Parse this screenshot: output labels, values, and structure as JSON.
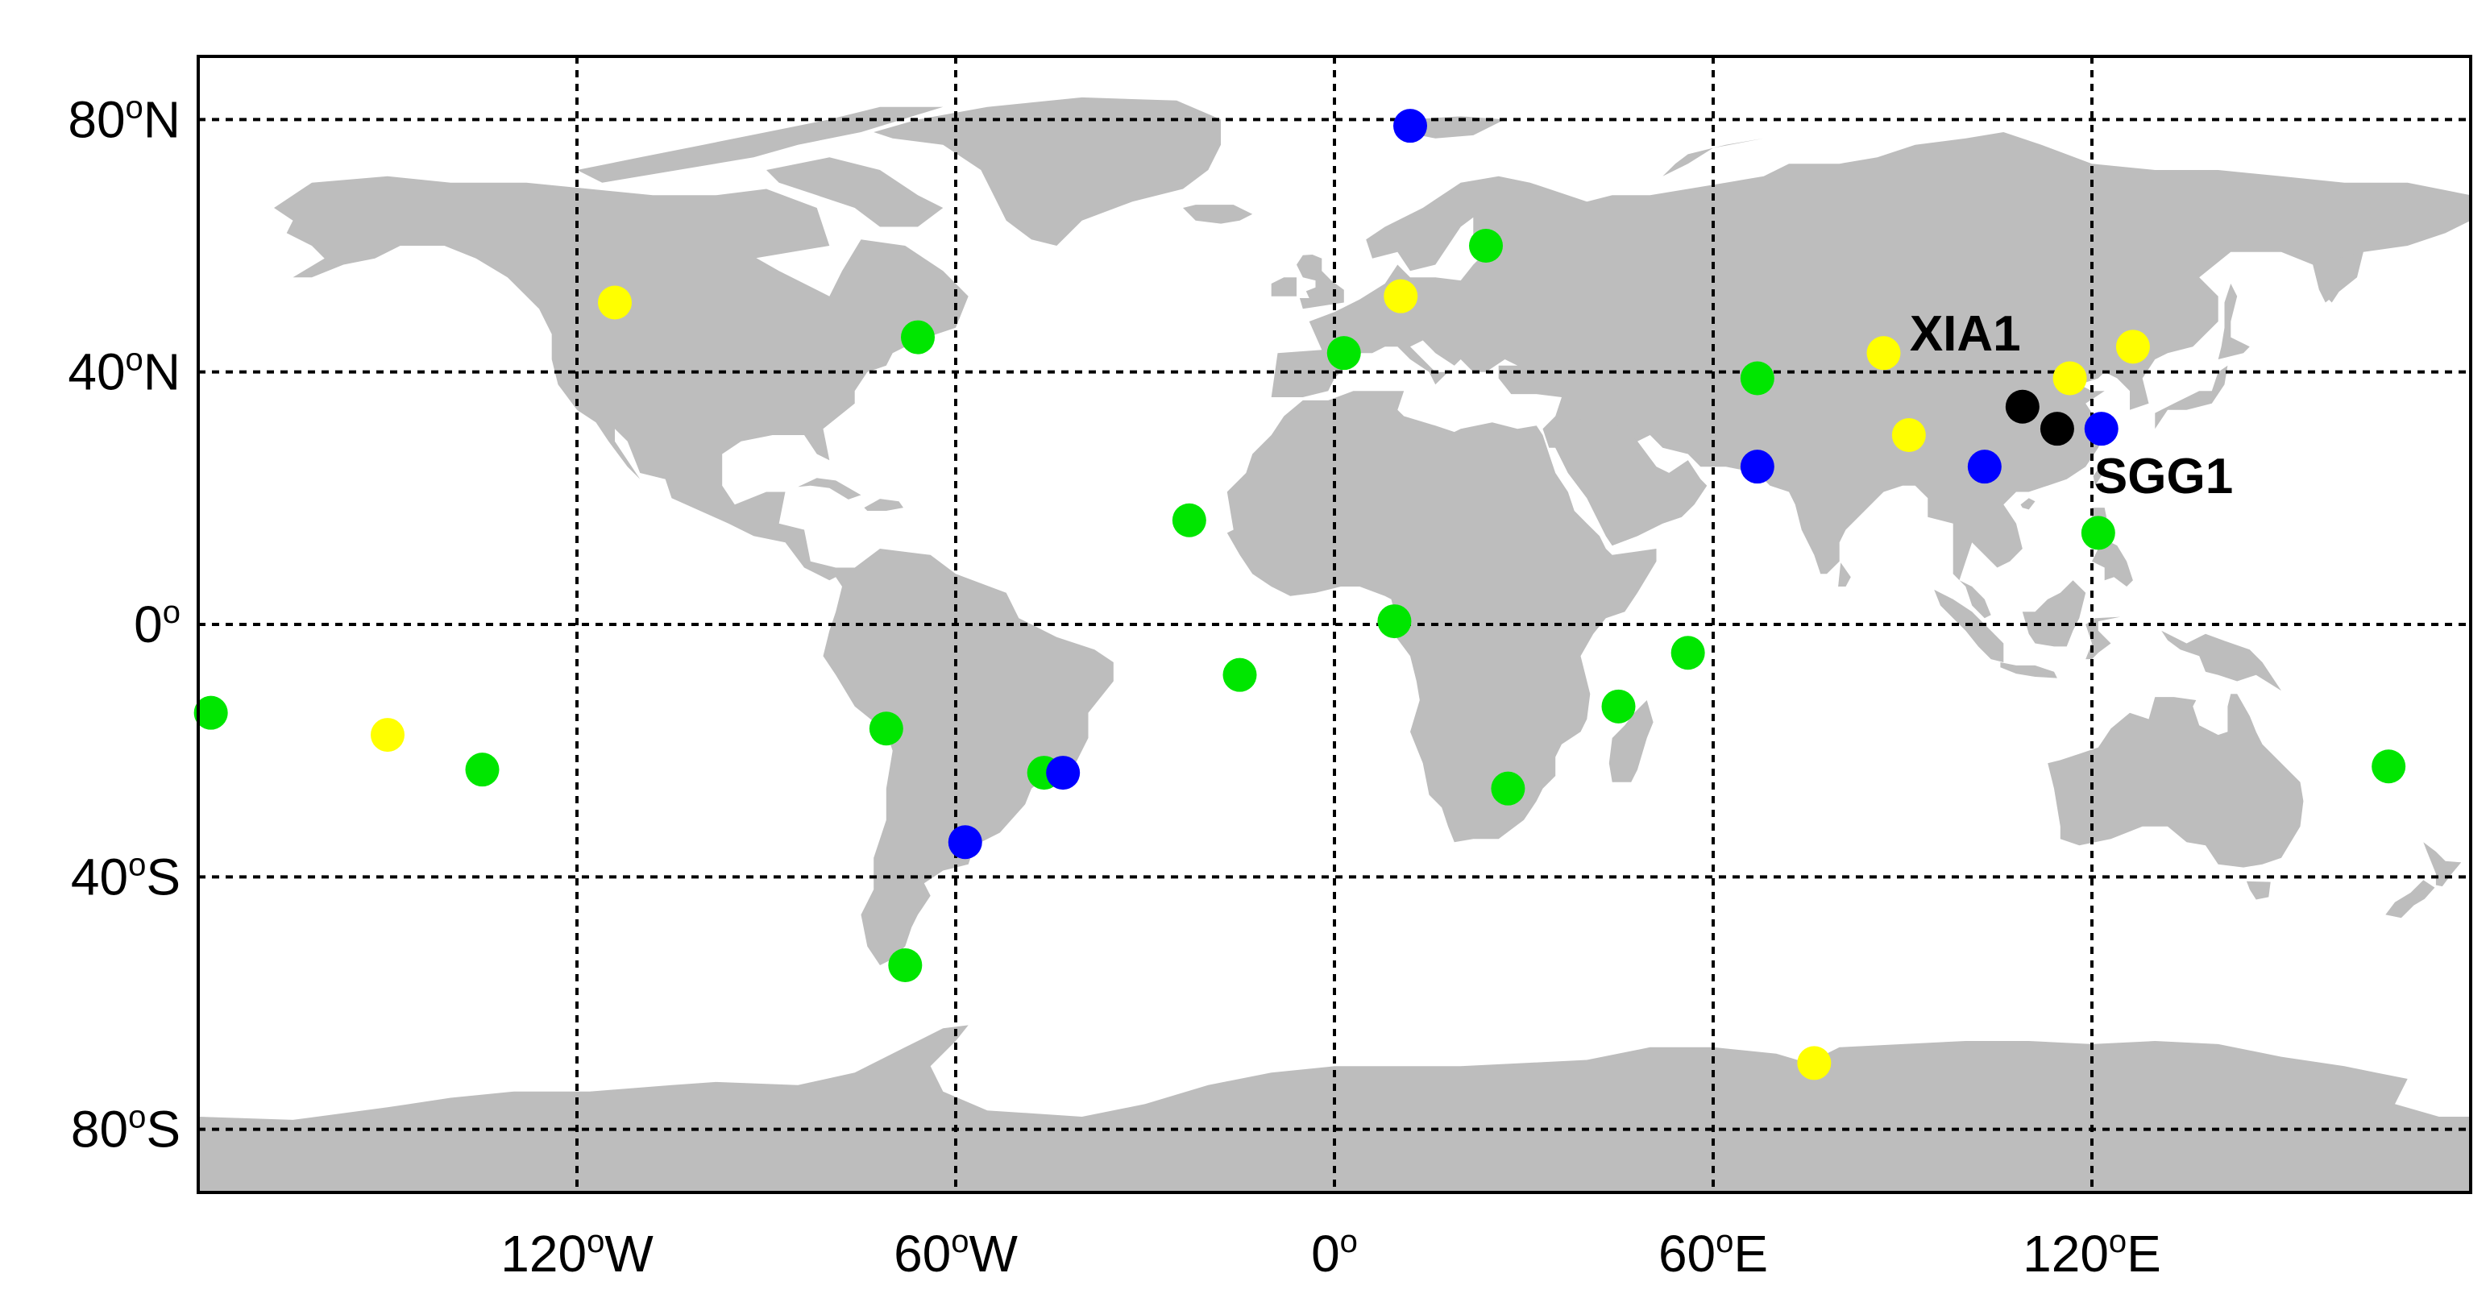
{
  "map": {
    "projection": "equirectangular",
    "lon_range": [
      -180,
      180
    ],
    "lat_range": [
      -90,
      90
    ],
    "colors": {
      "land": "#bdbdbd",
      "ocean": "#ffffff",
      "grid": "#000000",
      "green": "#00e600",
      "yellow": "#ffff00",
      "blue": "#0000ff",
      "black": "#000000"
    },
    "longitude_ticks": [
      {
        "value": -120,
        "deg": "120",
        "sup": "o",
        "hem": "W"
      },
      {
        "value": -60,
        "deg": "60",
        "sup": "o",
        "hem": "W"
      },
      {
        "value": 0,
        "deg": "0",
        "sup": "o",
        "hem": ""
      },
      {
        "value": 60,
        "deg": "60",
        "sup": "o",
        "hem": "E"
      },
      {
        "value": 120,
        "deg": "120",
        "sup": "o",
        "hem": "E"
      }
    ],
    "latitude_ticks": [
      {
        "value": 80,
        "deg": "80",
        "sup": "o",
        "hem": "N"
      },
      {
        "value": 40,
        "deg": "40",
        "sup": "o",
        "hem": "N"
      },
      {
        "value": 0,
        "deg": "0",
        "sup": "o",
        "hem": ""
      },
      {
        "value": -40,
        "deg": "40",
        "sup": "o",
        "hem": "S"
      },
      {
        "value": -80,
        "deg": "80",
        "sup": "o",
        "hem": "S"
      }
    ],
    "stations": [
      {
        "lon": 12,
        "lat": 79,
        "color": "blue"
      },
      {
        "lon": 24,
        "lat": 60,
        "color": "green"
      },
      {
        "lon": 10.5,
        "lat": 52,
        "color": "yellow"
      },
      {
        "lon": 1.5,
        "lat": 43,
        "color": "green"
      },
      {
        "lon": -114,
        "lat": 51,
        "color": "yellow"
      },
      {
        "lon": -66,
        "lat": 45.5,
        "color": "green"
      },
      {
        "lon": 67,
        "lat": 39,
        "color": "green"
      },
      {
        "lon": 67,
        "lat": 25,
        "color": "blue"
      },
      {
        "lon": 87,
        "lat": 43,
        "color": "yellow"
      },
      {
        "lon": 91,
        "lat": 30,
        "color": "yellow"
      },
      {
        "lon": 103,
        "lat": 25,
        "color": "blue"
      },
      {
        "lon": 109,
        "lat": 34.5,
        "color": "black",
        "label": "XIA1"
      },
      {
        "lon": 114.5,
        "lat": 31,
        "color": "black",
        "label": "SGG1"
      },
      {
        "lon": 116.5,
        "lat": 39,
        "color": "yellow"
      },
      {
        "lon": 121.5,
        "lat": 31,
        "color": "blue"
      },
      {
        "lon": 126.5,
        "lat": 44,
        "color": "yellow"
      },
      {
        "lon": 121,
        "lat": 14.5,
        "color": "green"
      },
      {
        "lon": -23,
        "lat": 16.5,
        "color": "green"
      },
      {
        "lon": 9.5,
        "lat": 0.5,
        "color": "green"
      },
      {
        "lon": -15,
        "lat": -8,
        "color": "green"
      },
      {
        "lon": 56,
        "lat": -4.5,
        "color": "green"
      },
      {
        "lon": 45,
        "lat": -13,
        "color": "green"
      },
      {
        "lon": 27.5,
        "lat": -26,
        "color": "green"
      },
      {
        "lon": -178,
        "lat": -14,
        "color": "green"
      },
      {
        "lon": -150,
        "lat": -17.5,
        "color": "yellow"
      },
      {
        "lon": -135,
        "lat": -23,
        "color": "green"
      },
      {
        "lon": -71,
        "lat": -16.5,
        "color": "green"
      },
      {
        "lon": -46,
        "lat": -23.5,
        "color": "green"
      },
      {
        "lon": -43,
        "lat": -23.5,
        "color": "blue"
      },
      {
        "lon": -58.5,
        "lat": -34.5,
        "color": "blue"
      },
      {
        "lon": -68,
        "lat": -54,
        "color": "green"
      },
      {
        "lon": 167,
        "lat": -22.5,
        "color": "green"
      },
      {
        "lon": 76,
        "lat": -69.5,
        "color": "yellow"
      }
    ]
  }
}
